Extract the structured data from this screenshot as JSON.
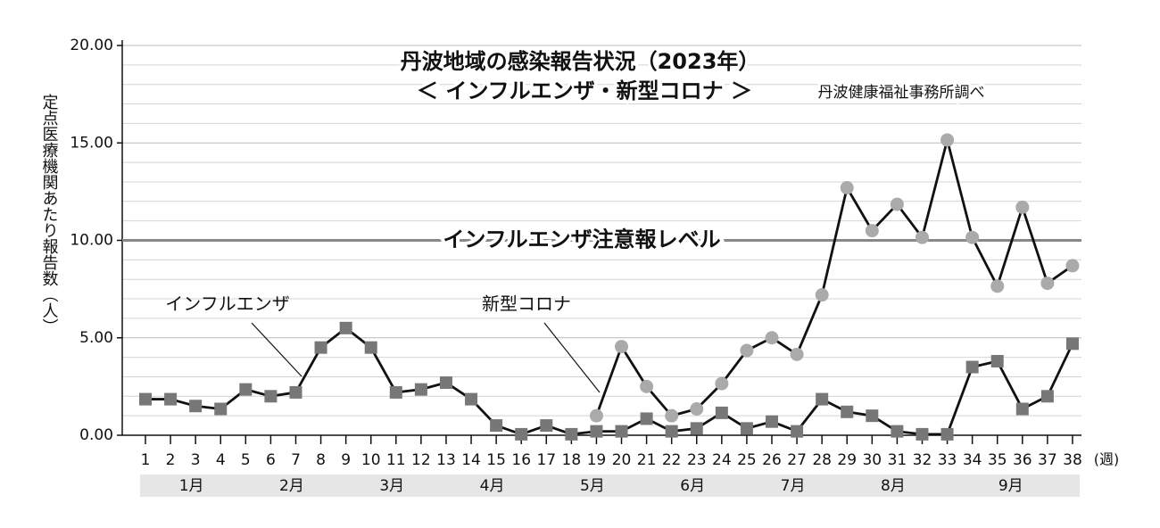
{
  "chart_data": {
    "type": "line",
    "title": "丹波地域の感染報告状況（2023年）",
    "subtitle": "＜ インフルエンザ・新型コロナ ＞",
    "source": "丹波健康福祉事務所調べ",
    "y_label": "定点医療機関あたり報告数（人）",
    "x_unit": "(週)",
    "categories": [
      "1",
      "2",
      "3",
      "4",
      "5",
      "6",
      "7",
      "8",
      "9",
      "10",
      "11",
      "12",
      "13",
      "14",
      "15",
      "16",
      "17",
      "18",
      "19",
      "20",
      "21",
      "22",
      "23",
      "24",
      "25",
      "26",
      "27",
      "28",
      "29",
      "30",
      "31",
      "32",
      "33",
      "34",
      "35",
      "36",
      "37",
      "38"
    ],
    "months": [
      {
        "label": "1月",
        "weeks": [
          1,
          4
        ]
      },
      {
        "label": "2月",
        "weeks": [
          5,
          8
        ]
      },
      {
        "label": "3月",
        "weeks": [
          9,
          12
        ]
      },
      {
        "label": "4月",
        "weeks": [
          13,
          16
        ]
      },
      {
        "label": "5月",
        "weeks": [
          17,
          20
        ]
      },
      {
        "label": "6月",
        "weeks": [
          21,
          24
        ]
      },
      {
        "label": "7月",
        "weeks": [
          25,
          28
        ]
      },
      {
        "label": "8月",
        "weeks": [
          29,
          32
        ]
      },
      {
        "label": "9月",
        "weeks": [
          33,
          36
        ]
      }
    ],
    "series": [
      {
        "name": "インフルエンザ",
        "color": "#777777",
        "marker": "square",
        "values": [
          1.85,
          1.85,
          1.5,
          1.35,
          2.35,
          2.0,
          2.2,
          4.5,
          5.5,
          4.5,
          2.2,
          2.35,
          2.7,
          1.85,
          0.5,
          0.05,
          0.5,
          0.05,
          0.2,
          0.2,
          0.85,
          0.2,
          0.35,
          1.15,
          0.35,
          0.7,
          0.2,
          1.85,
          1.2,
          1.0,
          0.2,
          0.05,
          0.05,
          3.5,
          3.8,
          1.35,
          2.0,
          4.7
        ]
      },
      {
        "name": "新型コロナ",
        "color": "#aaaaaa",
        "marker": "circle",
        "values": [
          null,
          null,
          null,
          null,
          null,
          null,
          null,
          null,
          null,
          null,
          null,
          null,
          null,
          null,
          null,
          null,
          null,
          null,
          1.0,
          4.55,
          2.5,
          1.0,
          1.35,
          2.65,
          4.35,
          5.0,
          4.15,
          7.2,
          12.7,
          10.5,
          11.85,
          10.15,
          15.15,
          10.15,
          7.65,
          11.7,
          7.8,
          8.7
        ]
      }
    ],
    "reference_line": {
      "value": 10,
      "label": "インフルエンザ注意報レベル",
      "color": "#888888"
    },
    "ylim": [
      0,
      20
    ],
    "yticks": [
      {
        "value": 0,
        "label": "0.00"
      },
      {
        "value": 5,
        "label": "5.00"
      },
      {
        "value": 10,
        "label": "10.00"
      },
      {
        "value": 15,
        "label": "15.00"
      },
      {
        "value": 20,
        "label": "20.00"
      }
    ],
    "minor_yticks": [
      1,
      2,
      3,
      4,
      6,
      7,
      8,
      9,
      11,
      12,
      13,
      14,
      16,
      17,
      18,
      19
    ],
    "grid": true
  }
}
